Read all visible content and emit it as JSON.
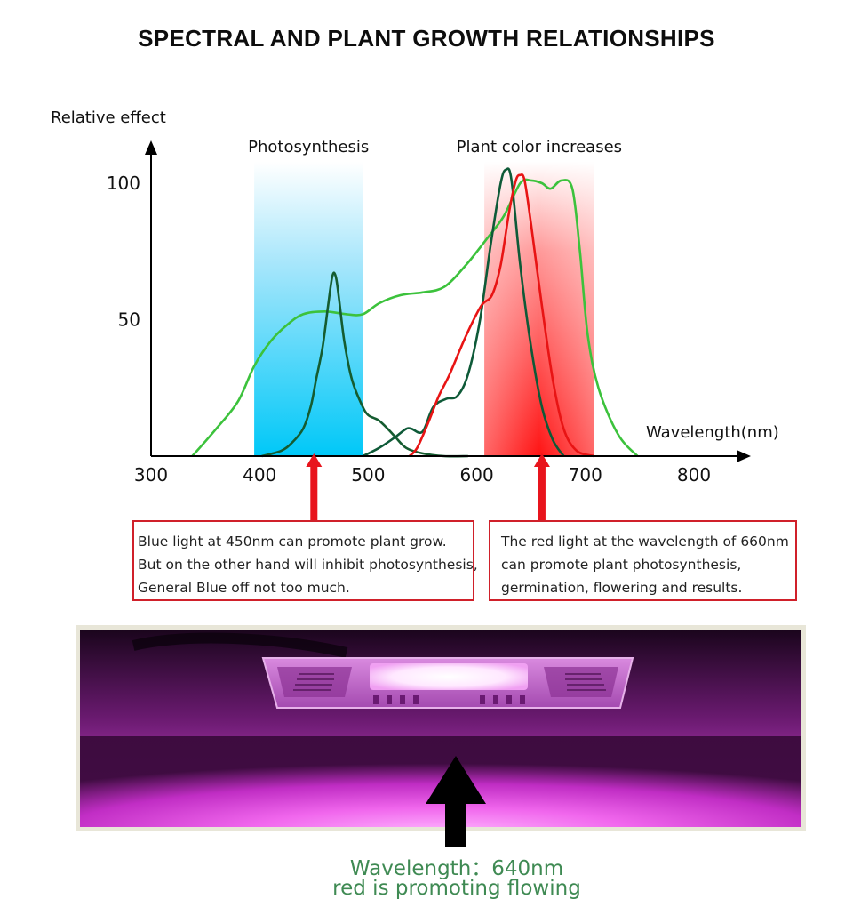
{
  "chart_data": {
    "type": "line",
    "title": "SPECTRAL AND PLANT GROWTH RELATIONSHIPS",
    "ylabel": "Relative effect",
    "xlabel": "Wavelength(nm)",
    "xlim": [
      300,
      850
    ],
    "ylim": [
      0,
      110
    ],
    "x_ticks": [
      300,
      400,
      500,
      600,
      700,
      800
    ],
    "y_ticks": [
      50,
      100
    ],
    "bands": [
      {
        "label": "Photosynthesis",
        "from": 395,
        "to": 495,
        "color": "#00c8f8"
      },
      {
        "label": "Plant color increases",
        "from": 607,
        "to": 708,
        "color": "#ff1a1a"
      }
    ],
    "markers": [
      450,
      660
    ],
    "series": [
      {
        "color": "#3cc23c",
        "points": [
          [
            338,
            0
          ],
          [
            360,
            10
          ],
          [
            380,
            20
          ],
          [
            395,
            33
          ],
          [
            410,
            42
          ],
          [
            425,
            48
          ],
          [
            440,
            52
          ],
          [
            460,
            53
          ],
          [
            480,
            52
          ],
          [
            495,
            52
          ],
          [
            510,
            56
          ],
          [
            530,
            59
          ],
          [
            550,
            60
          ],
          [
            570,
            62
          ],
          [
            590,
            70
          ],
          [
            610,
            80
          ],
          [
            625,
            88
          ],
          [
            640,
            100
          ],
          [
            650,
            101
          ],
          [
            660,
            100
          ],
          [
            668,
            98
          ],
          [
            678,
            101
          ],
          [
            688,
            98
          ],
          [
            695,
            75
          ],
          [
            702,
            45
          ],
          [
            712,
            25
          ],
          [
            730,
            8
          ],
          [
            748,
            0
          ]
        ]
      },
      {
        "color": "#155c30",
        "points": [
          [
            402,
            0
          ],
          [
            420,
            2
          ],
          [
            430,
            5
          ],
          [
            440,
            10
          ],
          [
            447,
            18
          ],
          [
            452,
            28
          ],
          [
            458,
            40
          ],
          [
            463,
            55
          ],
          [
            467,
            66
          ],
          [
            470,
            66
          ],
          [
            473,
            58
          ],
          [
            478,
            42
          ],
          [
            485,
            28
          ],
          [
            495,
            18
          ],
          [
            500,
            15
          ],
          [
            505,
            14
          ],
          [
            510,
            13
          ],
          [
            518,
            10
          ],
          [
            525,
            7
          ],
          [
            535,
            3
          ],
          [
            550,
            1
          ],
          [
            570,
            0
          ],
          [
            592,
            0
          ]
        ]
      },
      {
        "color": "#0e5a38",
        "points": [
          [
            495,
            0
          ],
          [
            510,
            3
          ],
          [
            525,
            7
          ],
          [
            535,
            10
          ],
          [
            540,
            10
          ],
          [
            550,
            9
          ],
          [
            560,
            18
          ],
          [
            572,
            21
          ],
          [
            582,
            22
          ],
          [
            592,
            30
          ],
          [
            603,
            50
          ],
          [
            613,
            78
          ],
          [
            622,
            100
          ],
          [
            627,
            105
          ],
          [
            632,
            101
          ],
          [
            640,
            70
          ],
          [
            650,
            40
          ],
          [
            660,
            18
          ],
          [
            670,
            6
          ],
          [
            680,
            0
          ]
        ]
      },
      {
        "color": "#e81414",
        "points": [
          [
            538,
            0
          ],
          [
            545,
            3
          ],
          [
            555,
            12
          ],
          [
            565,
            22
          ],
          [
            575,
            30
          ],
          [
            590,
            44
          ],
          [
            604,
            55
          ],
          [
            614,
            59
          ],
          [
            622,
            70
          ],
          [
            630,
            90
          ],
          [
            636,
            101
          ],
          [
            640,
            103
          ],
          [
            644,
            101
          ],
          [
            650,
            85
          ],
          [
            660,
            55
          ],
          [
            670,
            28
          ],
          [
            680,
            10
          ],
          [
            692,
            2
          ],
          [
            708,
            0
          ]
        ]
      }
    ]
  },
  "notes": {
    "left": [
      "Blue light at 450nm can promote plant grow.",
      "But on the other hand will inhibit photosynthesis,",
      "General Blue off not too much."
    ],
    "right": [
      "The red light at the wavelength of 660nm",
      "can promote plant photosynthesis,",
      "germination, flowering and results."
    ]
  },
  "caption": {
    "line1": "Wavelength：640nm",
    "line2": "red is promoting flowing"
  }
}
